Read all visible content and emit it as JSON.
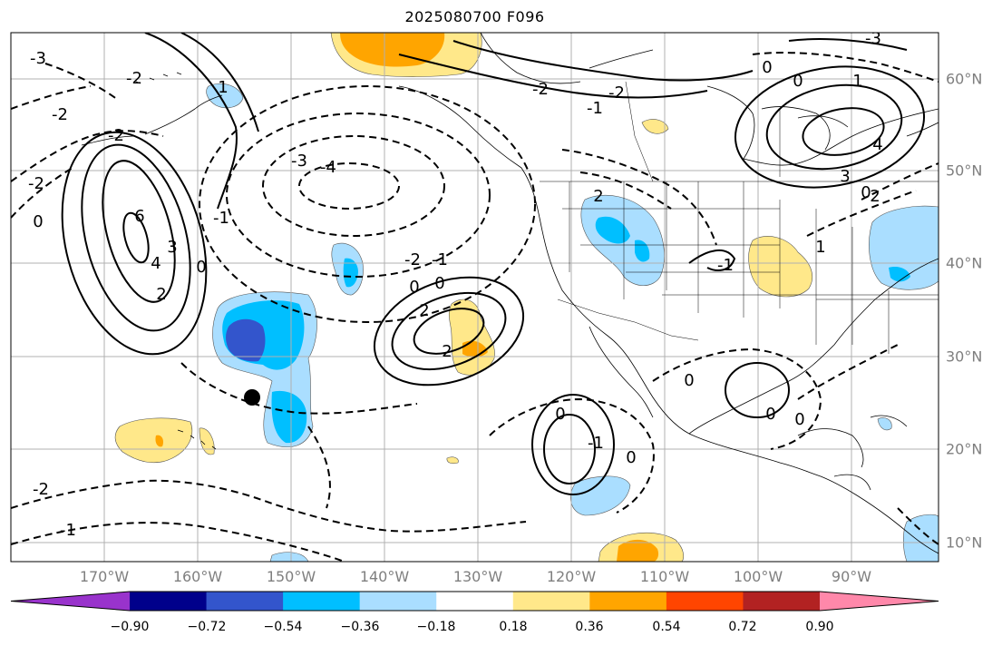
{
  "title": "2025080700 F096",
  "lon_labels": [
    "170°W",
    "160°W",
    "150°W",
    "140°W",
    "130°W",
    "120°W",
    "110°W",
    "100°W",
    "90°W"
  ],
  "lat_labels": [
    "60°N",
    "50°N",
    "40°N",
    "30°N",
    "20°N",
    "10°N"
  ],
  "colorbar": {
    "colors": [
      "#9933cc",
      "#00008b",
      "#3355cc",
      "#00bfff",
      "#aadeff",
      "#ffffff",
      "#ffe88a",
      "#ffa500",
      "#ff4500",
      "#b22222",
      "#ff88aa"
    ],
    "tick_labels": [
      "−0.90",
      "−0.72",
      "−0.54",
      "−0.36",
      "−0.18",
      "0.18",
      "0.36",
      "0.54",
      "0.72",
      "0.90"
    ]
  },
  "contour_labels": [
    "-3",
    "-2",
    "-2",
    "-2",
    "-2",
    "-3",
    "-4",
    "-2",
    "-1",
    "0",
    "0",
    "2",
    "2",
    "1",
    "0",
    "2",
    "4",
    "6",
    "3",
    "0",
    "-1",
    "-2",
    "-2",
    "0",
    "-1",
    "2",
    "-1",
    "0",
    "1",
    "3",
    "2",
    "0",
    "4",
    "1",
    "-3",
    "-1",
    "0",
    "0",
    "0",
    "0",
    "0",
    "-2",
    "-1"
  ]
}
